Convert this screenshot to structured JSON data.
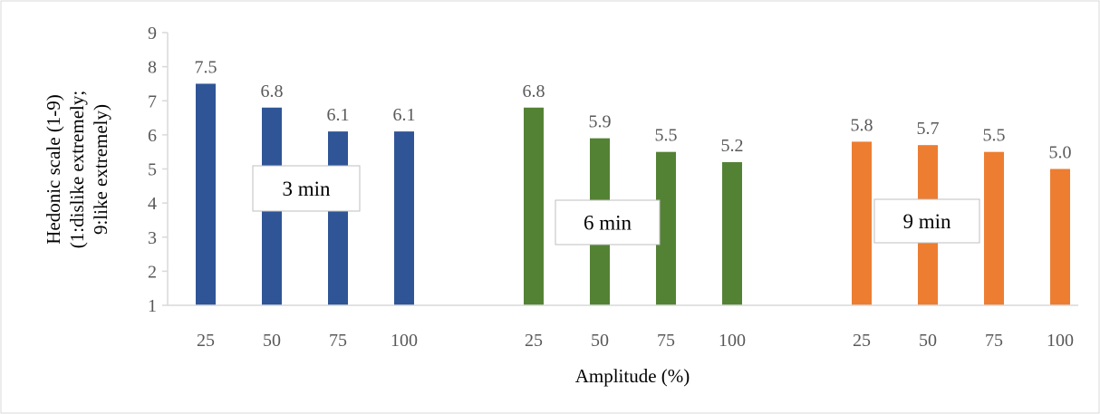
{
  "chart_data": {
    "type": "bar",
    "xlabel": "Amplitude (%)",
    "ylabel_lines": [
      "Hedonic scale (1-9)",
      "(1:dislike extremely;",
      "9:like extremely)"
    ],
    "ylim": [
      1,
      9
    ],
    "yticks": [
      1,
      2,
      3,
      4,
      5,
      6,
      7,
      8,
      9
    ],
    "grid": false,
    "legend": "none",
    "groups": [
      {
        "label": "3 min",
        "color": "#2F5597",
        "categories": [
          "25",
          "50",
          "75",
          "100"
        ],
        "values": [
          7.5,
          6.8,
          6.1,
          6.1
        ],
        "value_labels": [
          "7.5",
          "6.8",
          "6.1",
          "6.1"
        ]
      },
      {
        "label": "6 min",
        "color": "#548235",
        "categories": [
          "25",
          "50",
          "75",
          "100"
        ],
        "values": [
          6.8,
          5.9,
          5.5,
          5.2
        ],
        "value_labels": [
          "6.8",
          "5.9",
          "5.5",
          "5.2"
        ]
      },
      {
        "label": "9 min",
        "color": "#ED7D31",
        "categories": [
          "25",
          "50",
          "75",
          "100"
        ],
        "values": [
          5.8,
          5.7,
          5.5,
          5.0
        ],
        "value_labels": [
          "5.8",
          "5.7",
          "5.5",
          "5.0"
        ]
      }
    ]
  }
}
